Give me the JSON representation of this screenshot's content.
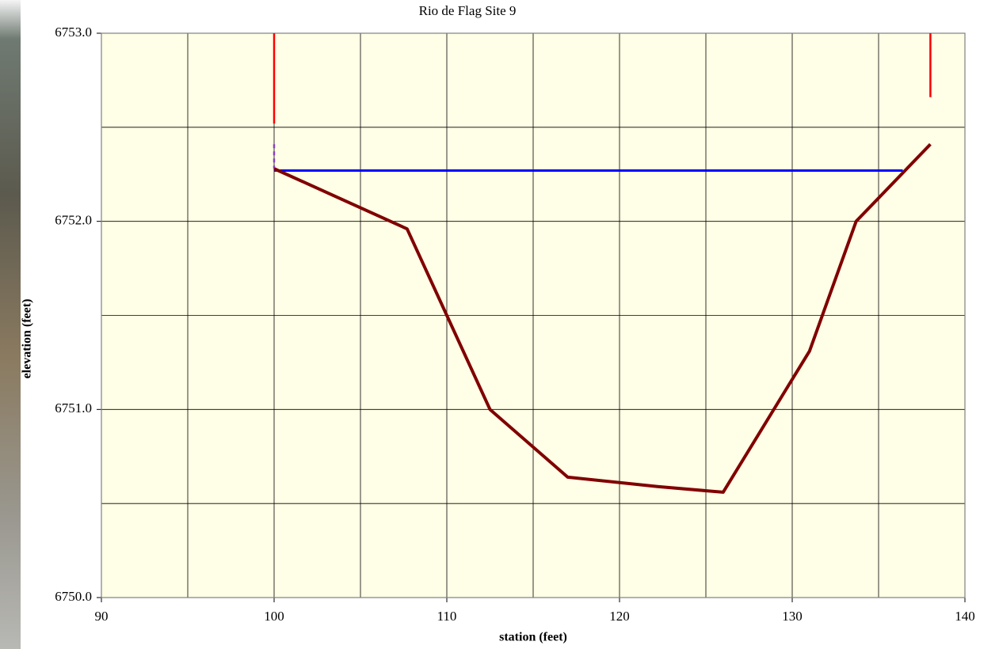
{
  "chart_data": {
    "type": "line",
    "title": "Rio de Flag Site 9",
    "x_label": "station (feet)",
    "y_label": "elevation (feet)",
    "xlim": [
      90,
      140
    ],
    "xticks": [
      90,
      100,
      110,
      120,
      130,
      140
    ],
    "x_minor_grid": [
      95,
      105,
      115,
      125,
      135
    ],
    "ylim": [
      6750,
      6753
    ],
    "yticks": [
      {
        "value": 6750,
        "label": "6750.0"
      },
      {
        "value": 6751,
        "label": "6751.0"
      },
      {
        "value": 6752,
        "label": "6752.0"
      },
      {
        "value": 6753,
        "label": "6753.0"
      }
    ],
    "y_minor_grid": [
      6750.5,
      6751.5,
      6752.5
    ],
    "grid": true,
    "plot_background": "#fffee6",
    "series": [
      {
        "color": "#0000ff",
        "width": 3,
        "dashed": false,
        "x": [
          100,
          136.4
        ],
        "values": [
          6752.27,
          6752.27
        ]
      },
      {
        "color": "#ff0000",
        "width": 2.5,
        "dashed": false,
        "x": [
          100,
          100
        ],
        "values": [
          6753,
          6752.52
        ]
      },
      {
        "color": "#ff0000",
        "width": 2.5,
        "dashed": false,
        "x": [
          138,
          138
        ],
        "values": [
          6753,
          6752.66
        ]
      },
      {
        "color": "#8a3cc8",
        "width": 2.5,
        "dashed": true,
        "x": [
          100,
          100
        ],
        "values": [
          6752.41,
          6752.28
        ]
      },
      {
        "color": "#800000",
        "width": 4,
        "dashed": false,
        "x": [
          100,
          107.7,
          112.5,
          117,
          122.2,
          126,
          131,
          133.7,
          138
        ],
        "values": [
          6752.28,
          6751.96,
          6751.0,
          6750.64,
          6750.59,
          6750.56,
          6751.31,
          6752.0,
          6752.41
        ]
      }
    ]
  }
}
